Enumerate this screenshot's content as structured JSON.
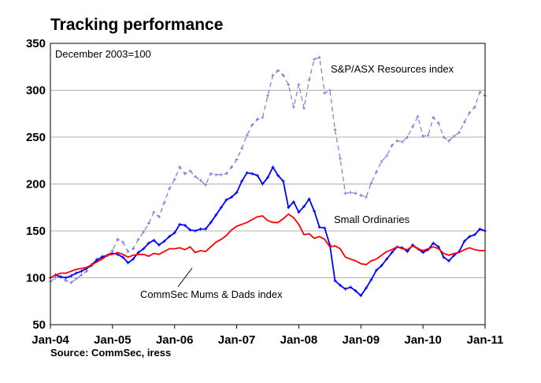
{
  "chart_data": {
    "type": "line",
    "title": "Tracking performance",
    "subtitle": "December 2003=100",
    "source": "Source: CommSec, iress",
    "ylim": [
      50,
      350
    ],
    "yticks": [
      50,
      100,
      150,
      200,
      250,
      300,
      350
    ],
    "xlim": [
      "2004-01",
      "2011-01"
    ],
    "xticks": [
      "Jan-04",
      "Jan-05",
      "Jan-06",
      "Jan-07",
      "Jan-08",
      "Jan-09",
      "Jan-10",
      "Jan-11"
    ],
    "grid": true,
    "series": [
      {
        "name": "S&P/ASX Resources index",
        "color": "#7b7bd9",
        "style": "dashed",
        "marker": "small-cross",
        "points": [
          [
            "2004-01",
            96
          ],
          [
            "2004-02",
            100
          ],
          [
            "2004-03",
            101
          ],
          [
            "2004-04",
            97
          ],
          [
            "2004-05",
            95
          ],
          [
            "2004-06",
            99
          ],
          [
            "2004-07",
            103
          ],
          [
            "2004-08",
            107
          ],
          [
            "2004-09",
            113
          ],
          [
            "2004-10",
            120
          ],
          [
            "2004-11",
            123
          ],
          [
            "2004-12",
            124
          ],
          [
            "2005-01",
            129
          ],
          [
            "2005-02",
            141
          ],
          [
            "2005-03",
            138
          ],
          [
            "2005-04",
            128
          ],
          [
            "2005-05",
            131
          ],
          [
            "2005-06",
            141
          ],
          [
            "2005-07",
            149
          ],
          [
            "2005-08",
            158
          ],
          [
            "2005-09",
            170
          ],
          [
            "2005-10",
            165
          ],
          [
            "2005-11",
            180
          ],
          [
            "2005-12",
            195
          ],
          [
            "2006-01",
            205
          ],
          [
            "2006-02",
            218
          ],
          [
            "2006-03",
            211
          ],
          [
            "2006-04",
            214
          ],
          [
            "2006-05",
            208
          ],
          [
            "2006-06",
            204
          ],
          [
            "2006-07",
            199
          ],
          [
            "2006-08",
            211
          ],
          [
            "2006-09",
            210
          ],
          [
            "2006-10",
            210
          ],
          [
            "2006-11",
            211
          ],
          [
            "2006-12",
            218
          ],
          [
            "2007-01",
            226
          ],
          [
            "2007-02",
            238
          ],
          [
            "2007-03",
            252
          ],
          [
            "2007-04",
            263
          ],
          [
            "2007-05",
            269
          ],
          [
            "2007-06",
            271
          ],
          [
            "2007-07",
            294
          ],
          [
            "2007-08",
            316
          ],
          [
            "2007-09",
            321
          ],
          [
            "2007-10",
            316
          ],
          [
            "2007-11",
            306
          ],
          [
            "2007-12",
            282
          ],
          [
            "2008-01",
            306
          ],
          [
            "2008-02",
            281
          ],
          [
            "2008-03",
            311
          ],
          [
            "2008-04",
            333
          ],
          [
            "2008-05",
            335
          ],
          [
            "2008-06",
            297
          ],
          [
            "2008-07",
            300
          ],
          [
            "2008-08",
            258
          ],
          [
            "2008-09",
            227
          ],
          [
            "2008-10",
            190
          ],
          [
            "2008-11",
            191
          ],
          [
            "2008-12",
            190
          ],
          [
            "2009-01",
            188
          ],
          [
            "2009-02",
            186
          ],
          [
            "2009-03",
            201
          ],
          [
            "2009-04",
            213
          ],
          [
            "2009-05",
            224
          ],
          [
            "2009-06",
            230
          ],
          [
            "2009-07",
            241
          ],
          [
            "2009-08",
            246
          ],
          [
            "2009-09",
            245
          ],
          [
            "2009-10",
            250
          ],
          [
            "2009-11",
            261
          ],
          [
            "2009-12",
            272
          ],
          [
            "2010-01",
            251
          ],
          [
            "2010-02",
            252
          ],
          [
            "2010-03",
            271
          ],
          [
            "2010-04",
            265
          ],
          [
            "2010-05",
            250
          ],
          [
            "2010-06",
            246
          ],
          [
            "2010-07",
            251
          ],
          [
            "2010-08",
            255
          ],
          [
            "2010-09",
            266
          ],
          [
            "2010-10",
            276
          ],
          [
            "2010-11",
            282
          ],
          [
            "2010-12",
            298
          ],
          [
            "2011-01",
            294
          ]
        ]
      },
      {
        "name": "Small Ordinaries",
        "color": "#0000ff",
        "style": "solid",
        "marker": "small-cross",
        "points": [
          [
            "2004-01",
            100
          ],
          [
            "2004-02",
            103
          ],
          [
            "2004-03",
            101
          ],
          [
            "2004-04",
            100
          ],
          [
            "2004-05",
            102
          ],
          [
            "2004-06",
            105
          ],
          [
            "2004-07",
            107
          ],
          [
            "2004-08",
            110
          ],
          [
            "2004-09",
            114
          ],
          [
            "2004-10",
            119
          ],
          [
            "2004-11",
            122
          ],
          [
            "2004-12",
            124
          ],
          [
            "2005-01",
            126
          ],
          [
            "2005-02",
            125
          ],
          [
            "2005-03",
            122
          ],
          [
            "2005-04",
            116
          ],
          [
            "2005-05",
            120
          ],
          [
            "2005-06",
            127
          ],
          [
            "2005-07",
            131
          ],
          [
            "2005-08",
            137
          ],
          [
            "2005-09",
            140
          ],
          [
            "2005-10",
            135
          ],
          [
            "2005-11",
            139
          ],
          [
            "2005-12",
            144
          ],
          [
            "2006-01",
            148
          ],
          [
            "2006-02",
            157
          ],
          [
            "2006-03",
            156
          ],
          [
            "2006-04",
            151
          ],
          [
            "2006-05",
            150
          ],
          [
            "2006-06",
            152
          ],
          [
            "2006-07",
            152
          ],
          [
            "2006-08",
            159
          ],
          [
            "2006-09",
            167
          ],
          [
            "2006-10",
            175
          ],
          [
            "2006-11",
            183
          ],
          [
            "2006-12",
            186
          ],
          [
            "2007-01",
            191
          ],
          [
            "2007-02",
            203
          ],
          [
            "2007-03",
            212
          ],
          [
            "2007-04",
            211
          ],
          [
            "2007-05",
            209
          ],
          [
            "2007-06",
            200
          ],
          [
            "2007-07",
            207
          ],
          [
            "2007-08",
            218
          ],
          [
            "2007-09",
            209
          ],
          [
            "2007-10",
            203
          ],
          [
            "2007-11",
            175
          ],
          [
            "2007-12",
            181
          ],
          [
            "2008-01",
            170
          ],
          [
            "2008-02",
            176
          ],
          [
            "2008-03",
            184
          ],
          [
            "2008-04",
            171
          ],
          [
            "2008-05",
            154
          ],
          [
            "2008-06",
            153
          ],
          [
            "2008-07",
            135
          ],
          [
            "2008-08",
            97
          ],
          [
            "2008-09",
            92
          ],
          [
            "2008-10",
            88
          ],
          [
            "2008-11",
            90
          ],
          [
            "2008-12",
            86
          ],
          [
            "2009-01",
            81
          ],
          [
            "2009-02",
            89
          ],
          [
            "2009-03",
            98
          ],
          [
            "2009-04",
            108
          ],
          [
            "2009-05",
            113
          ],
          [
            "2009-06",
            120
          ],
          [
            "2009-07",
            127
          ],
          [
            "2009-08",
            133
          ],
          [
            "2009-09",
            132
          ],
          [
            "2009-10",
            128
          ],
          [
            "2009-11",
            135
          ],
          [
            "2009-12",
            131
          ],
          [
            "2010-01",
            127
          ],
          [
            "2010-02",
            130
          ],
          [
            "2010-03",
            137
          ],
          [
            "2010-04",
            133
          ],
          [
            "2010-05",
            122
          ],
          [
            "2010-06",
            118
          ],
          [
            "2010-07",
            124
          ],
          [
            "2010-08",
            128
          ],
          [
            "2010-09",
            139
          ],
          [
            "2010-10",
            144
          ],
          [
            "2010-11",
            146
          ],
          [
            "2010-12",
            152
          ],
          [
            "2011-01",
            150
          ]
        ]
      },
      {
        "name": "CommSec Mums & Dads index",
        "color": "#ff0000",
        "style": "solid",
        "marker": "none",
        "points": [
          [
            "2004-01",
            100
          ],
          [
            "2004-02",
            103
          ],
          [
            "2004-03",
            105
          ],
          [
            "2004-04",
            105
          ],
          [
            "2004-05",
            107
          ],
          [
            "2004-06",
            109
          ],
          [
            "2004-07",
            110
          ],
          [
            "2004-08",
            111
          ],
          [
            "2004-09",
            114
          ],
          [
            "2004-10",
            117
          ],
          [
            "2004-11",
            120
          ],
          [
            "2004-12",
            124
          ],
          [
            "2005-01",
            125
          ],
          [
            "2005-02",
            127
          ],
          [
            "2005-03",
            125
          ],
          [
            "2005-04",
            122
          ],
          [
            "2005-05",
            124
          ],
          [
            "2005-06",
            125
          ],
          [
            "2005-07",
            125
          ],
          [
            "2005-08",
            123
          ],
          [
            "2005-09",
            126
          ],
          [
            "2005-10",
            125
          ],
          [
            "2005-11",
            128
          ],
          [
            "2005-12",
            131
          ],
          [
            "2006-01",
            131
          ],
          [
            "2006-02",
            132
          ],
          [
            "2006-03",
            130
          ],
          [
            "2006-04",
            133
          ],
          [
            "2006-05",
            127
          ],
          [
            "2006-06",
            129
          ],
          [
            "2006-07",
            128
          ],
          [
            "2006-08",
            133
          ],
          [
            "2006-09",
            138
          ],
          [
            "2006-10",
            141
          ],
          [
            "2006-11",
            145
          ],
          [
            "2006-12",
            151
          ],
          [
            "2007-01",
            155
          ],
          [
            "2007-02",
            157
          ],
          [
            "2007-03",
            159
          ],
          [
            "2007-04",
            162
          ],
          [
            "2007-05",
            165
          ],
          [
            "2007-06",
            166
          ],
          [
            "2007-07",
            161
          ],
          [
            "2007-08",
            159
          ],
          [
            "2007-09",
            159
          ],
          [
            "2007-10",
            163
          ],
          [
            "2007-11",
            168
          ],
          [
            "2007-12",
            164
          ],
          [
            "2008-01",
            157
          ],
          [
            "2008-02",
            146
          ],
          [
            "2008-03",
            147
          ],
          [
            "2008-04",
            142
          ],
          [
            "2008-05",
            144
          ],
          [
            "2008-06",
            141
          ],
          [
            "2008-07",
            133
          ],
          [
            "2008-08",
            134
          ],
          [
            "2008-09",
            131
          ],
          [
            "2008-10",
            122
          ],
          [
            "2008-11",
            120
          ],
          [
            "2008-12",
            118
          ],
          [
            "2009-01",
            115
          ],
          [
            "2009-02",
            114
          ],
          [
            "2009-03",
            118
          ],
          [
            "2009-04",
            120
          ],
          [
            "2009-05",
            124
          ],
          [
            "2009-06",
            128
          ],
          [
            "2009-07",
            130
          ],
          [
            "2009-08",
            133
          ],
          [
            "2009-09",
            131
          ],
          [
            "2009-10",
            130
          ],
          [
            "2009-11",
            134
          ],
          [
            "2009-12",
            131
          ],
          [
            "2010-01",
            129
          ],
          [
            "2010-02",
            131
          ],
          [
            "2010-03",
            133
          ],
          [
            "2010-04",
            131
          ],
          [
            "2010-05",
            126
          ],
          [
            "2010-06",
            124
          ],
          [
            "2010-07",
            126
          ],
          [
            "2010-08",
            127
          ],
          [
            "2010-09",
            130
          ],
          [
            "2010-10",
            132
          ],
          [
            "2010-11",
            130
          ],
          [
            "2010-12",
            129
          ],
          [
            "2011-01",
            129
          ]
        ]
      }
    ],
    "series_labels": [
      {
        "series": 0,
        "text": "S&P/ASX Resources index",
        "anchor": "2009-02"
      },
      {
        "series": 1,
        "text": "Small Ordinaries",
        "anchor": "2008-11"
      },
      {
        "series": 2,
        "text": "CommSec Mums & Dads index",
        "anchor": "2005-06"
      }
    ]
  }
}
